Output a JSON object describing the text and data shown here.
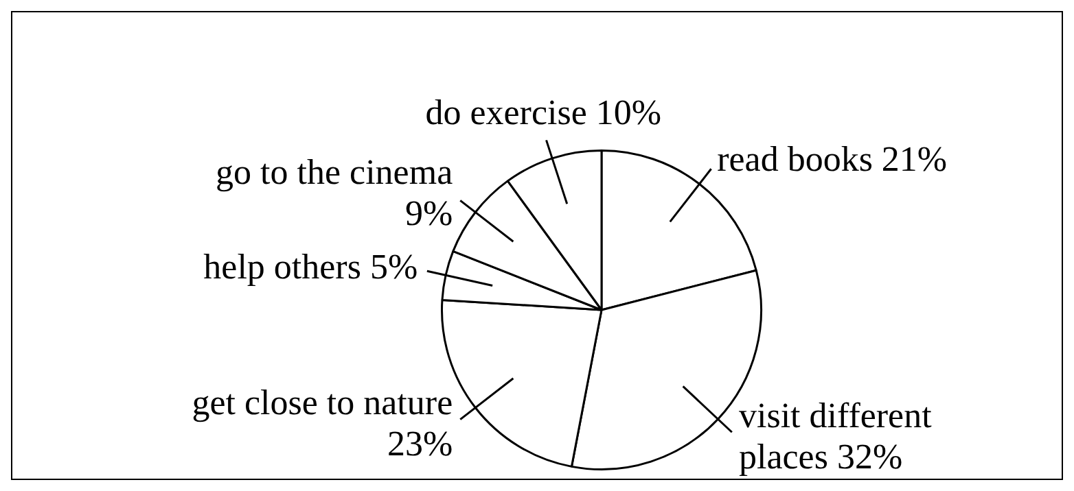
{
  "chart_data": {
    "type": "pie",
    "categories": [
      "read books",
      "visit different places",
      "get close to nature",
      "help others",
      "go to the cinema",
      "do exercise"
    ],
    "values": [
      21,
      32,
      23,
      5,
      9,
      10
    ],
    "colors": [
      "#ffffff",
      "#ffffff",
      "#ffffff",
      "#ffffff",
      "#ffffff",
      "#ffffff"
    ],
    "value_labels": [
      "21%",
      "32%",
      "23%",
      "5%",
      "9%",
      "10%"
    ],
    "legend": false
  }
}
